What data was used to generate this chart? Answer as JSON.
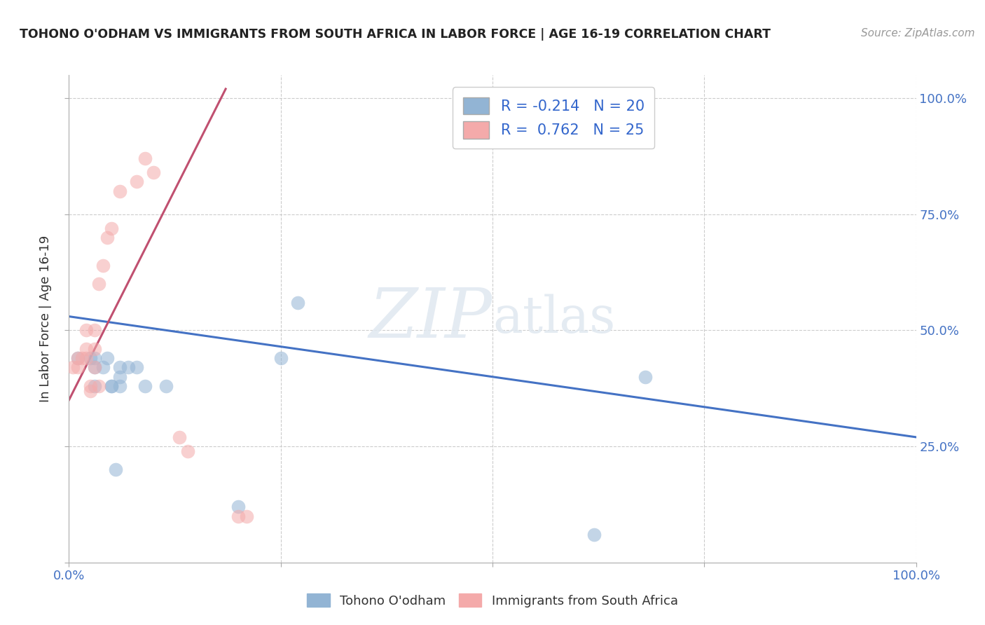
{
  "title": "TOHONO O'ODHAM VS IMMIGRANTS FROM SOUTH AFRICA IN LABOR FORCE | AGE 16-19 CORRELATION CHART",
  "source": "Source: ZipAtlas.com",
  "ylabel": "In Labor Force | Age 16-19",
  "watermark_line1": "ZIP",
  "watermark_line2": "atlas",
  "color_blue": "#92B4D4",
  "color_pink": "#F4AAAA",
  "line_blue": "#4472C4",
  "line_pink": "#C05070",
  "blue_points": [
    [
      0.01,
      0.44
    ],
    [
      0.025,
      0.44
    ],
    [
      0.03,
      0.44
    ],
    [
      0.045,
      0.44
    ],
    [
      0.03,
      0.42
    ],
    [
      0.03,
      0.38
    ],
    [
      0.04,
      0.42
    ],
    [
      0.05,
      0.38
    ],
    [
      0.05,
      0.38
    ],
    [
      0.06,
      0.42
    ],
    [
      0.06,
      0.4
    ],
    [
      0.07,
      0.42
    ],
    [
      0.08,
      0.42
    ],
    [
      0.09,
      0.38
    ],
    [
      0.115,
      0.38
    ],
    [
      0.06,
      0.38
    ],
    [
      0.25,
      0.44
    ],
    [
      0.27,
      0.56
    ],
    [
      0.68,
      0.4
    ],
    [
      0.055,
      0.2
    ],
    [
      0.2,
      0.12
    ],
    [
      0.62,
      0.06
    ]
  ],
  "pink_points": [
    [
      0.005,
      0.42
    ],
    [
      0.01,
      0.42
    ],
    [
      0.01,
      0.44
    ],
    [
      0.015,
      0.44
    ],
    [
      0.02,
      0.44
    ],
    [
      0.02,
      0.46
    ],
    [
      0.02,
      0.5
    ],
    [
      0.025,
      0.38
    ],
    [
      0.025,
      0.37
    ],
    [
      0.03,
      0.5
    ],
    [
      0.03,
      0.46
    ],
    [
      0.03,
      0.42
    ],
    [
      0.035,
      0.38
    ],
    [
      0.035,
      0.6
    ],
    [
      0.04,
      0.64
    ],
    [
      0.045,
      0.7
    ],
    [
      0.05,
      0.72
    ],
    [
      0.06,
      0.8
    ],
    [
      0.08,
      0.82
    ],
    [
      0.09,
      0.87
    ],
    [
      0.1,
      0.84
    ],
    [
      0.13,
      0.27
    ],
    [
      0.14,
      0.24
    ],
    [
      0.2,
      0.1
    ],
    [
      0.21,
      0.1
    ]
  ],
  "blue_line_x": [
    0.0,
    1.0
  ],
  "blue_line_y": [
    0.53,
    0.27
  ],
  "pink_line_x": [
    0.0,
    0.185
  ],
  "pink_line_y": [
    0.35,
    1.02
  ],
  "xlim": [
    0.0,
    1.0
  ],
  "ylim": [
    0.0,
    1.05
  ],
  "xticks": [
    0.0,
    0.25,
    0.5,
    0.75,
    1.0
  ],
  "yticks": [
    0.0,
    0.25,
    0.5,
    0.75,
    1.0
  ],
  "background_color": "#FFFFFF",
  "grid_color": "#CCCCCC",
  "right_tick_labels": [
    "25.0%",
    "50.0%",
    "75.0%",
    "100.0%"
  ],
  "bottom_tick_labels": [
    "0.0%",
    "100.0%"
  ]
}
